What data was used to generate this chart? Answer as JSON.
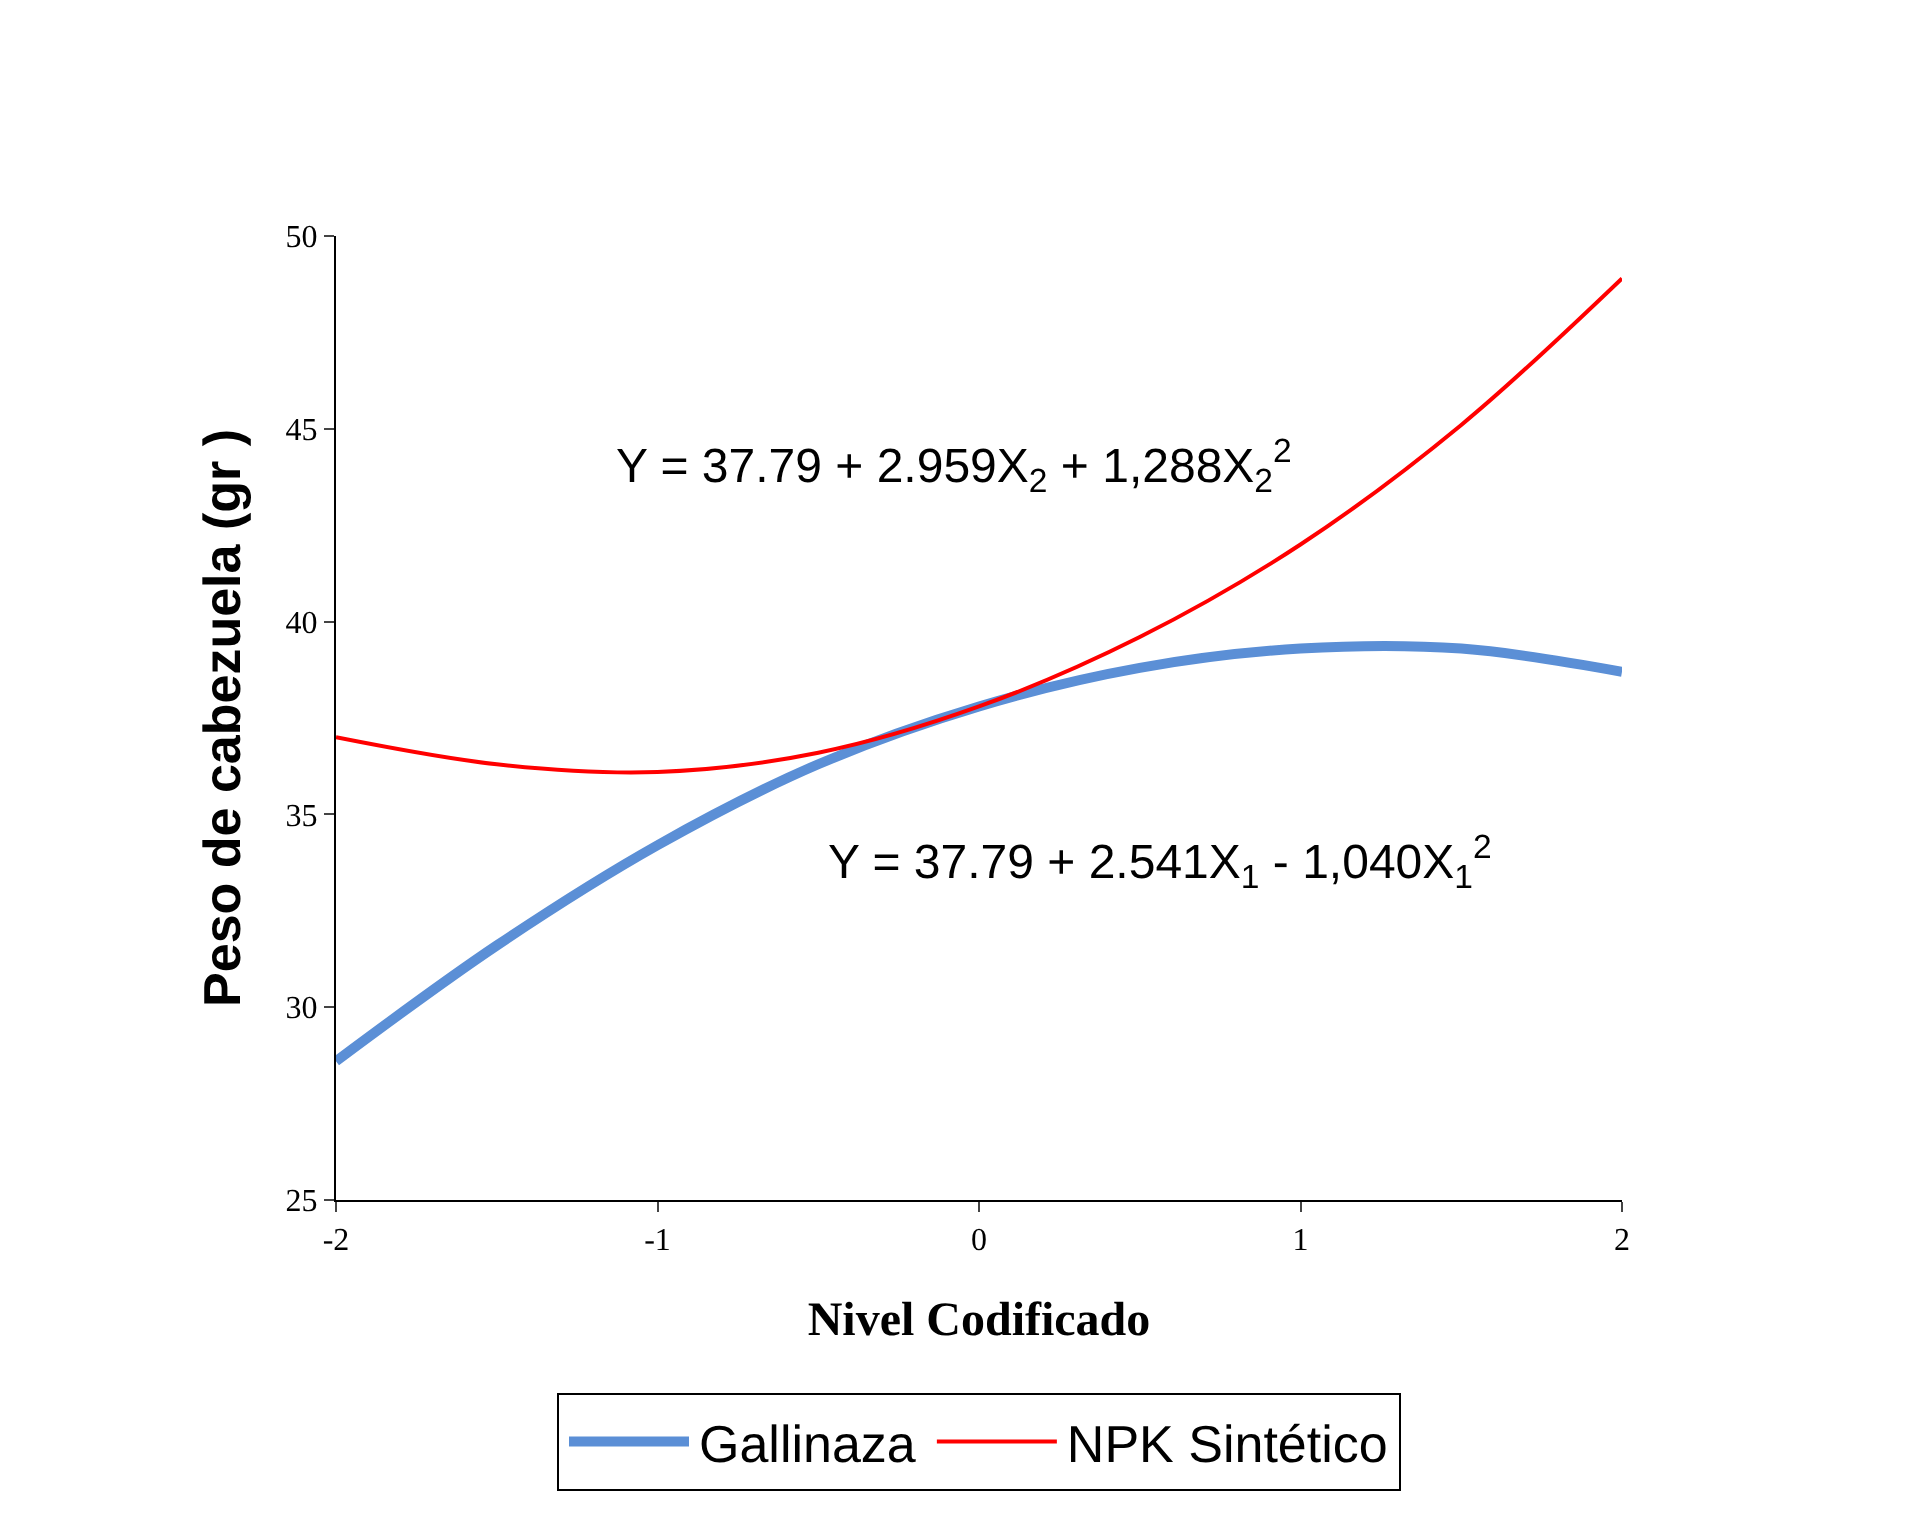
{
  "chart_data": {
    "type": "line",
    "xlabel": "Nivel Codificado",
    "ylabel": "Peso de cabezuela (gr )",
    "x": [
      -2,
      -1.5,
      -1,
      -0.5,
      0,
      0.5,
      1,
      1.5,
      2
    ],
    "series": [
      {
        "name": "Gallinaza",
        "color": "#5b8fd6",
        "values": [
          28.6,
          31.6,
          34.2,
          36.3,
          37.8,
          38.8,
          39.3,
          39.3,
          38.7
        ]
      },
      {
        "name": "NPK Sintético",
        "color": "#ff0000",
        "values": [
          37.0,
          36.3,
          36.1,
          36.6,
          37.8,
          39.6,
          42.0,
          45.1,
          48.9
        ]
      }
    ],
    "annotations": [
      "Y = 37.79 + 2.959X$_{2}$ + 1,288X$_{2}$$^{2}$",
      "Y = 37.79 + 2.541X$_{1}$ - 1,040X$_{1}$$^{2}$"
    ],
    "xlim": [
      -2,
      2
    ],
    "xticks": [
      -2,
      -1,
      0,
      1,
      2
    ],
    "ylim": [
      25,
      50
    ],
    "yticks": [
      25,
      30,
      35,
      40,
      45,
      50
    ],
    "legend": "bottom",
    "marker": "none",
    "line_style": "solid"
  }
}
